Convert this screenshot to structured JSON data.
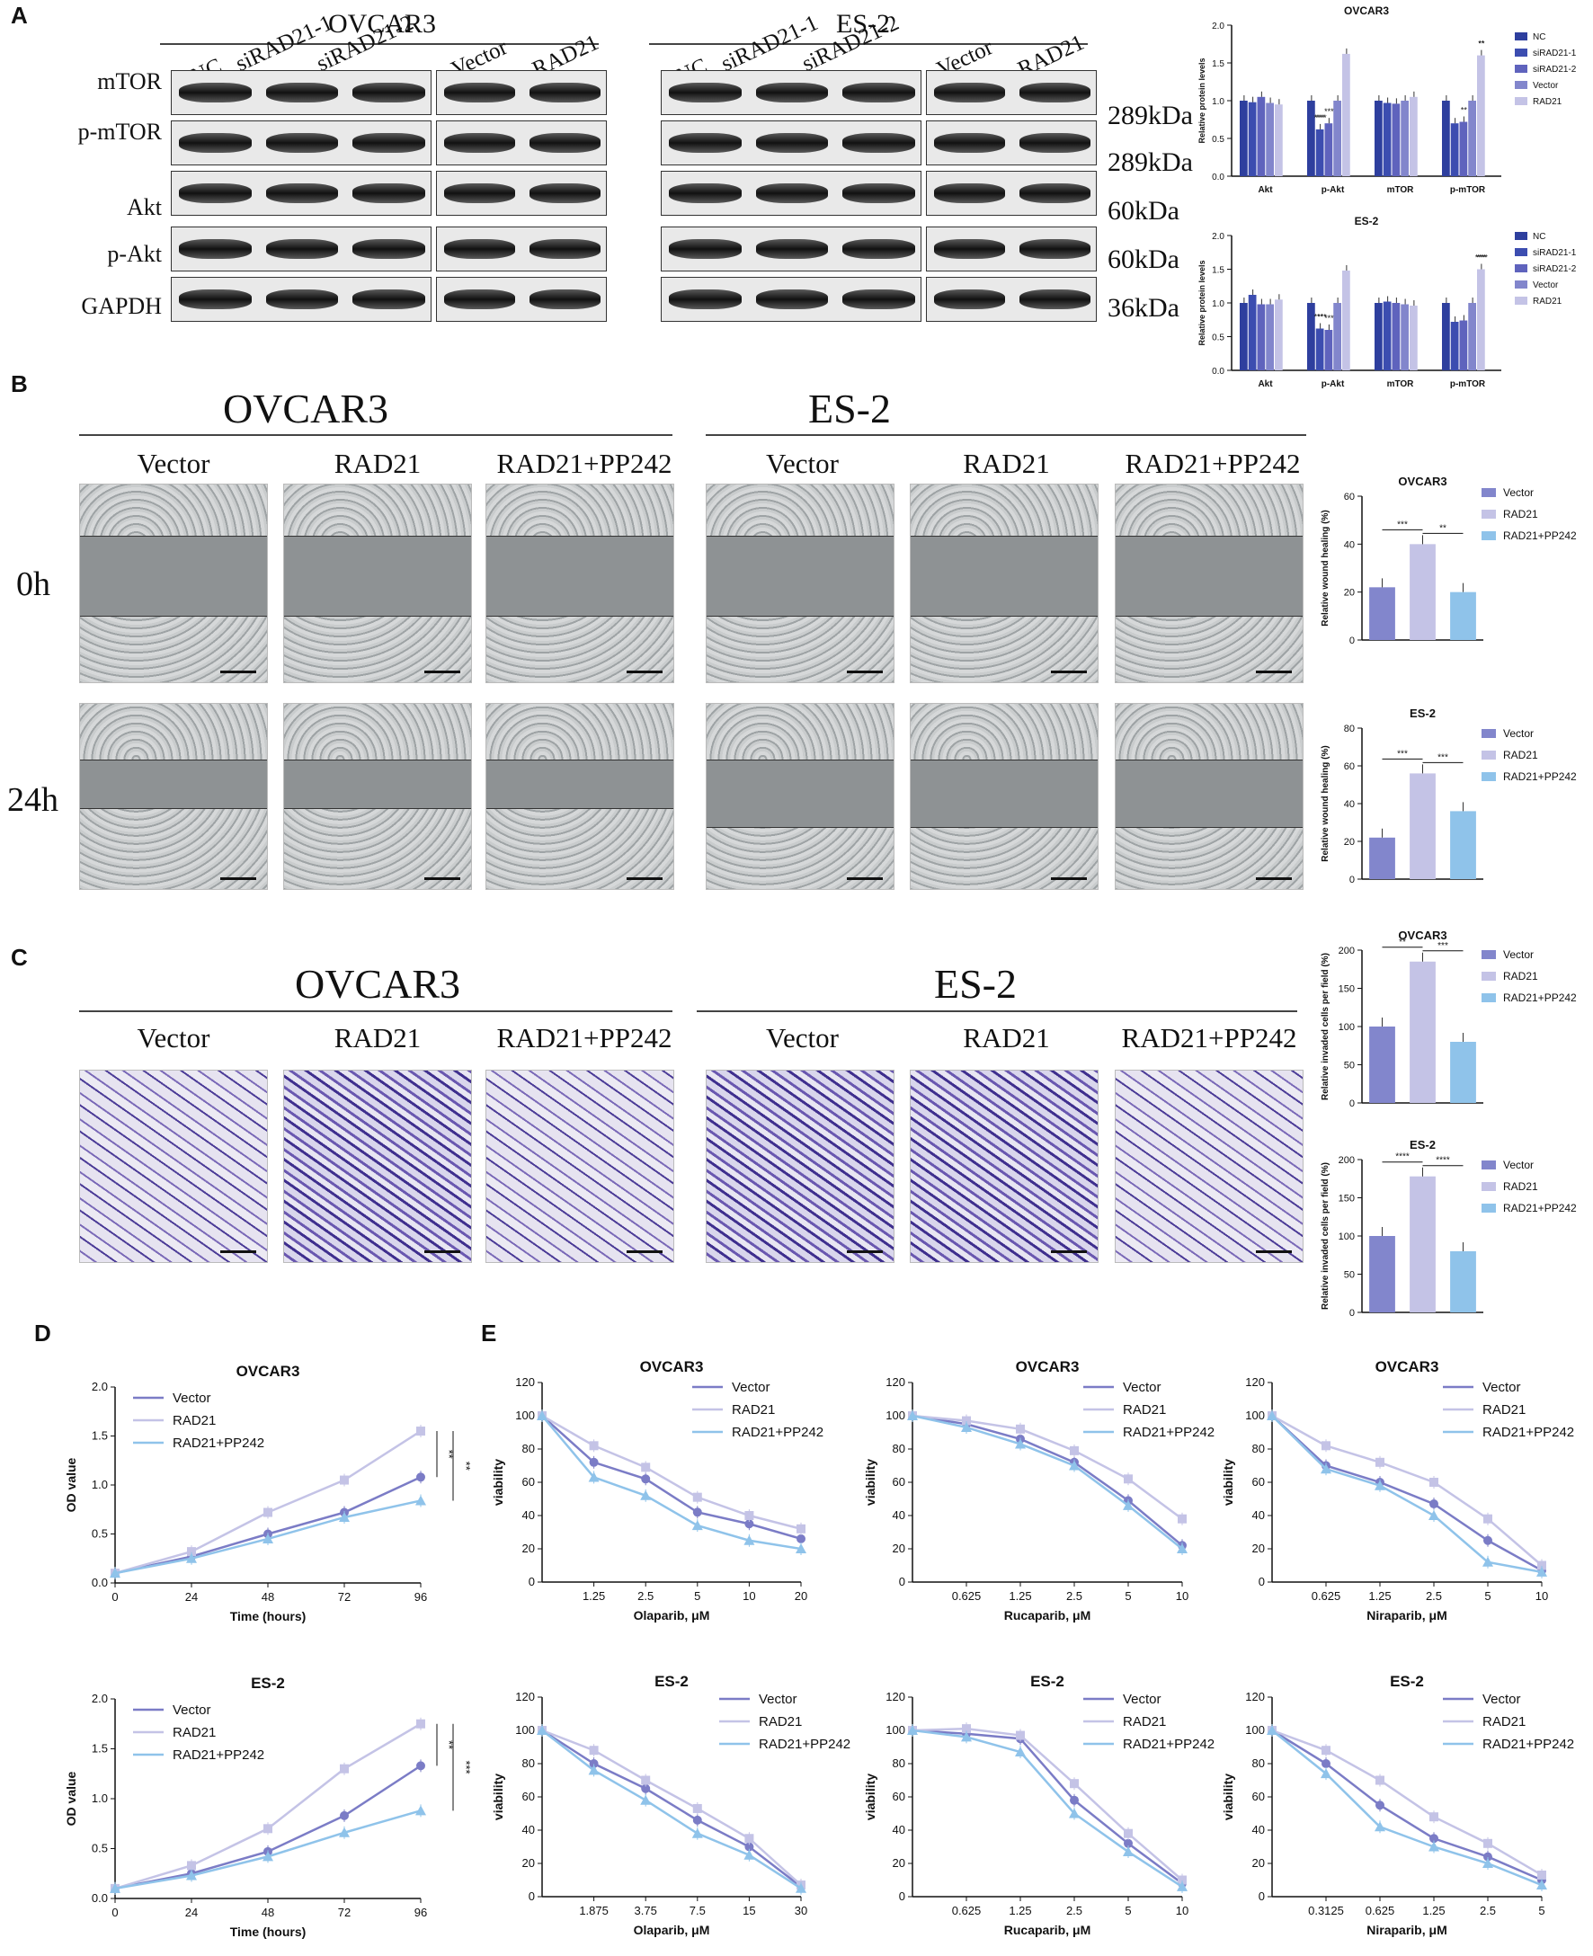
{
  "panels": {
    "A": "A",
    "B": "B",
    "C": "C",
    "D": "D",
    "E": "E"
  },
  "panelA": {
    "cell_lines": [
      "OVCAR3",
      "ES-2"
    ],
    "lanes_ovcar3": [
      "NC",
      "siRAD21-1",
      "siRAD21-2",
      "Vector",
      "RAD21"
    ],
    "lanes_es2": [
      "NC",
      "siRAD21-1",
      "siRAD21-2",
      "Vector",
      "RAD21"
    ],
    "bands": [
      "mTOR",
      "p-mTOR",
      "Akt",
      "p-Akt",
      "GAPDH"
    ],
    "kda": [
      "289kDa",
      "289kDa",
      "60kDa",
      "60kDa",
      "36kDa"
    ]
  },
  "panelB": {
    "titles": [
      "OVCAR3",
      "ES-2"
    ],
    "groups": [
      "Vector",
      "RAD21",
      "RAD21+PP242",
      "Vector",
      "RAD21",
      "RAD21+PP242"
    ],
    "rows": [
      "0h",
      "24h"
    ]
  },
  "panelC": {
    "titles": [
      "OVCAR3",
      "ES-2"
    ],
    "groups": [
      "Vector",
      "RAD21",
      "RAD21+PP242",
      "Vector",
      "RAD21",
      "RAD21+PP242"
    ]
  },
  "colors": {
    "NC": "#2e3f9e",
    "siRAD21-1": "#3c4db0",
    "siRAD21-2": "#5f63bd",
    "Vector": "#8286cc",
    "RAD21": "#c4c3e6",
    "PP242": "#8fc3ea",
    "vec_dot": "#7b7cc6"
  },
  "chart_data": [
    {
      "id": "A1",
      "type": "bar",
      "title": "OVCAR3",
      "ylabel": "Relative protein levels",
      "ylim": [
        0,
        2.0
      ],
      "yticks": [
        "0.0",
        "0.5",
        "1.0",
        "1.5",
        "2.0"
      ],
      "categories": [
        "Akt",
        "p-Akt",
        "mTOR",
        "p-mTOR"
      ],
      "series": [
        {
          "name": "NC",
          "values": [
            1.0,
            1.0,
            1.0,
            1.0
          ]
        },
        {
          "name": "siRAD21-1",
          "values": [
            0.98,
            0.62,
            0.97,
            0.7
          ]
        },
        {
          "name": "siRAD21-2",
          "values": [
            1.05,
            0.7,
            0.96,
            0.72
          ]
        },
        {
          "name": "Vector",
          "values": [
            0.97,
            1.0,
            1.0,
            1.0
          ]
        },
        {
          "name": "RAD21",
          "values": [
            0.95,
            1.62,
            1.05,
            1.6
          ]
        }
      ],
      "annotations": [
        "***",
        "***",
        "**",
        "**",
        "****",
        "**"
      ]
    },
    {
      "id": "A2",
      "type": "bar",
      "title": "ES-2",
      "ylabel": "Relative protein levels",
      "ylim": [
        0,
        2.0
      ],
      "yticks": [
        "0.0",
        "0.5",
        "1.0",
        "1.5",
        "2.0"
      ],
      "categories": [
        "Akt",
        "p-Akt",
        "mTOR",
        "p-mTOR"
      ],
      "series": [
        {
          "name": "NC",
          "values": [
            1.0,
            1.0,
            1.0,
            1.0
          ]
        },
        {
          "name": "siRAD21-1",
          "values": [
            1.12,
            0.62,
            1.02,
            0.72
          ]
        },
        {
          "name": "siRAD21-2",
          "values": [
            0.98,
            0.6,
            1.0,
            0.74
          ]
        },
        {
          "name": "Vector",
          "values": [
            0.98,
            1.0,
            0.98,
            1.0
          ]
        },
        {
          "name": "RAD21",
          "values": [
            1.05,
            1.48,
            0.96,
            1.5
          ]
        }
      ],
      "annotations": [
        "****",
        "***",
        "***",
        "****",
        "**"
      ]
    },
    {
      "id": "B1",
      "type": "bar",
      "title": "OVCAR3",
      "ylabel": "Relative wound healing (%)",
      "ylim": [
        0,
        60
      ],
      "yticks": [
        "0",
        "20",
        "40",
        "60"
      ],
      "categories": [
        "Vector",
        "RAD21",
        "RAD21+PP242"
      ],
      "values": [
        22,
        40,
        20
      ],
      "annotations": [
        "***",
        "**"
      ]
    },
    {
      "id": "B2",
      "type": "bar",
      "title": "ES-2",
      "ylabel": "Relative wound healing (%)",
      "ylim": [
        0,
        80
      ],
      "yticks": [
        "0",
        "20",
        "40",
        "60",
        "80"
      ],
      "categories": [
        "Vector",
        "RAD21",
        "RAD21+PP242"
      ],
      "values": [
        22,
        56,
        36
      ],
      "annotations": [
        "***",
        "***"
      ]
    },
    {
      "id": "C1",
      "type": "bar",
      "title": "OVCAR3",
      "ylabel": "Relative invaded cells per field (%)",
      "ylim": [
        0,
        200
      ],
      "yticks": [
        "0",
        "50",
        "100",
        "150",
        "200"
      ],
      "categories": [
        "Vector",
        "RAD21",
        "RAD21+PP242"
      ],
      "values": [
        100,
        185,
        80
      ],
      "annotations": [
        "**",
        "***"
      ]
    },
    {
      "id": "C2",
      "type": "bar",
      "title": "ES-2",
      "ylabel": "Relative invaded cells per field (%)",
      "ylim": [
        0,
        200
      ],
      "yticks": [
        "0",
        "50",
        "100",
        "150",
        "200"
      ],
      "categories": [
        "Vector",
        "RAD21",
        "RAD21+PP242"
      ],
      "values": [
        100,
        178,
        80
      ],
      "annotations": [
        "****",
        "****"
      ]
    },
    {
      "id": "D1",
      "type": "line",
      "title": "OVCAR3",
      "xlabel": "Time (hours)",
      "ylabel": "OD value",
      "x": [
        "0",
        "24",
        "48",
        "72",
        "96"
      ],
      "ylim": [
        0,
        2.0
      ],
      "yticks": [
        "0.0",
        "0.5",
        "1.0",
        "1.5",
        "2.0"
      ],
      "series": [
        {
          "name": "Vector",
          "values": [
            0.1,
            0.27,
            0.5,
            0.72,
            1.08
          ]
        },
        {
          "name": "RAD21",
          "values": [
            0.1,
            0.32,
            0.72,
            1.05,
            1.55
          ]
        },
        {
          "name": "RAD21+PP242",
          "values": [
            0.1,
            0.25,
            0.45,
            0.67,
            0.84
          ]
        }
      ],
      "annotations": [
        "**",
        "**"
      ]
    },
    {
      "id": "D2",
      "type": "line",
      "title": "ES-2",
      "xlabel": "Time (hours)",
      "ylabel": "OD value",
      "x": [
        "0",
        "24",
        "48",
        "72",
        "96"
      ],
      "ylim": [
        0,
        2.0
      ],
      "yticks": [
        "0.0",
        "0.5",
        "1.0",
        "1.5",
        "2.0"
      ],
      "series": [
        {
          "name": "Vector",
          "values": [
            0.1,
            0.25,
            0.47,
            0.83,
            1.33
          ]
        },
        {
          "name": "RAD21",
          "values": [
            0.1,
            0.33,
            0.7,
            1.3,
            1.75
          ]
        },
        {
          "name": "RAD21+PP242",
          "values": [
            0.1,
            0.23,
            0.42,
            0.66,
            0.88
          ]
        }
      ],
      "annotations": [
        "**",
        "***"
      ]
    },
    {
      "id": "E1",
      "type": "line",
      "title": "OVCAR3",
      "xlabel": "Olaparib, μM",
      "ylabel": "viability",
      "x": [
        "0",
        "1.25",
        "2.5",
        "5",
        "10",
        "20"
      ],
      "ylim": [
        0,
        120
      ],
      "yticks": [
        "0",
        "20",
        "40",
        "60",
        "80",
        "100",
        "120"
      ],
      "series": [
        {
          "name": "Vector",
          "values": [
            100,
            72,
            62,
            42,
            35,
            26
          ]
        },
        {
          "name": "RAD21",
          "values": [
            100,
            82,
            69,
            51,
            40,
            32
          ]
        },
        {
          "name": "RAD21+PP242",
          "values": [
            100,
            63,
            52,
            34,
            25,
            20
          ]
        }
      ]
    },
    {
      "id": "E2",
      "type": "line",
      "title": "OVCAR3",
      "xlabel": "Rucaparib, μM",
      "ylabel": "viability",
      "x": [
        "0",
        "0.625",
        "1.25",
        "2.5",
        "5",
        "10"
      ],
      "ylim": [
        0,
        120
      ],
      "yticks": [
        "0",
        "20",
        "40",
        "60",
        "80",
        "100",
        "120"
      ],
      "series": [
        {
          "name": "Vector",
          "values": [
            100,
            95,
            86,
            72,
            49,
            22
          ]
        },
        {
          "name": "RAD21",
          "values": [
            100,
            97,
            92,
            79,
            62,
            38
          ]
        },
        {
          "name": "RAD21+PP242",
          "values": [
            100,
            93,
            83,
            70,
            46,
            20
          ]
        }
      ]
    },
    {
      "id": "E3",
      "type": "line",
      "title": "OVCAR3",
      "xlabel": "Niraparib, μM",
      "ylabel": "viability",
      "x": [
        "0",
        "0.625",
        "1.25",
        "2.5",
        "5",
        "10"
      ],
      "ylim": [
        0,
        120
      ],
      "yticks": [
        "0",
        "20",
        "40",
        "60",
        "80",
        "100",
        "120"
      ],
      "series": [
        {
          "name": "Vector",
          "values": [
            100,
            70,
            60,
            47,
            25,
            7
          ]
        },
        {
          "name": "RAD21",
          "values": [
            100,
            82,
            72,
            60,
            38,
            10
          ]
        },
        {
          "name": "RAD21+PP242",
          "values": [
            100,
            68,
            58,
            40,
            12,
            6
          ]
        }
      ]
    },
    {
      "id": "E4",
      "type": "line",
      "title": "ES-2",
      "xlabel": "Olaparib, μM",
      "ylabel": "viability",
      "x": [
        "0",
        "1.875",
        "3.75",
        "7.5",
        "15",
        "30"
      ],
      "ylim": [
        0,
        120
      ],
      "yticks": [
        "0",
        "20",
        "40",
        "60",
        "80",
        "100",
        "120"
      ],
      "series": [
        {
          "name": "Vector",
          "values": [
            100,
            80,
            65,
            46,
            30,
            6
          ]
        },
        {
          "name": "RAD21",
          "values": [
            100,
            88,
            70,
            53,
            35,
            7
          ]
        },
        {
          "name": "RAD21+PP242",
          "values": [
            100,
            76,
            58,
            38,
            25,
            5
          ]
        }
      ]
    },
    {
      "id": "E5",
      "type": "line",
      "title": "ES-2",
      "xlabel": "Rucaparib, μM",
      "ylabel": "viability",
      "x": [
        "0",
        "0.625",
        "1.25",
        "2.5",
        "5",
        "10"
      ],
      "ylim": [
        0,
        120
      ],
      "yticks": [
        "0",
        "20",
        "40",
        "60",
        "80",
        "100",
        "120"
      ],
      "series": [
        {
          "name": "Vector",
          "values": [
            100,
            98,
            95,
            58,
            32,
            8
          ]
        },
        {
          "name": "RAD21",
          "values": [
            100,
            101,
            97,
            68,
            38,
            10
          ]
        },
        {
          "name": "RAD21+PP242",
          "values": [
            100,
            96,
            87,
            50,
            27,
            6
          ]
        }
      ]
    },
    {
      "id": "E6",
      "type": "line",
      "title": "ES-2",
      "xlabel": "Niraparib, μM",
      "ylabel": "viability",
      "x": [
        "0",
        "0.3125",
        "0.625",
        "1.25",
        "2.5",
        "5"
      ],
      "ylim": [
        0,
        120
      ],
      "yticks": [
        "0",
        "20",
        "40",
        "60",
        "80",
        "100",
        "120"
      ],
      "series": [
        {
          "name": "Vector",
          "values": [
            100,
            80,
            55,
            35,
            24,
            10
          ]
        },
        {
          "name": "RAD21",
          "values": [
            100,
            88,
            70,
            48,
            32,
            13
          ]
        },
        {
          "name": "RAD21+PP242",
          "values": [
            100,
            74,
            42,
            30,
            20,
            7
          ]
        }
      ]
    }
  ]
}
